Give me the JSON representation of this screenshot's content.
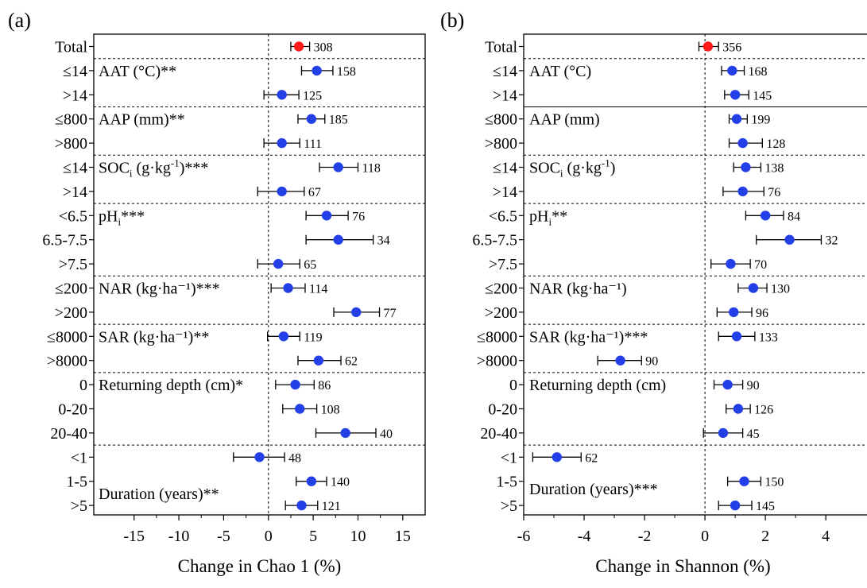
{
  "chart_data": [
    {
      "panel_label": "(a)",
      "type": "forest",
      "xlabel": "Change in Chao 1 (%)",
      "xlim": [
        -19.5,
        17.5
      ],
      "xticks": [
        -15,
        -10,
        -5,
        0,
        5,
        10,
        15
      ],
      "categories": [
        "Total",
        "≤14",
        ">14",
        "≤800",
        ">800",
        "≤14",
        ">14",
        "<6.5",
        "6.5-7.5",
        ">7.5",
        "≤200",
        ">200",
        "≤8000",
        ">8000",
        "0",
        "0-20",
        "20-40",
        "<1",
        "1-5",
        ">5"
      ],
      "values": [
        3.4,
        5.4,
        1.5,
        4.8,
        1.5,
        7.8,
        1.5,
        6.5,
        7.8,
        1.1,
        2.2,
        9.8,
        1.7,
        5.6,
        3.0,
        3.5,
        8.6,
        -1.0,
        4.8,
        3.7
      ],
      "ci_low": [
        2.5,
        3.7,
        -0.5,
        3.3,
        -0.5,
        5.7,
        -1.2,
        4.2,
        4.2,
        -1.2,
        0.3,
        7.3,
        -0.1,
        3.3,
        0.8,
        1.6,
        5.3,
        -3.9,
        3.1,
        1.9
      ],
      "ci_high": [
        4.6,
        7.2,
        3.4,
        6.3,
        3.5,
        10.0,
        4.0,
        8.9,
        11.7,
        3.5,
        4.1,
        12.4,
        3.5,
        8.1,
        5.1,
        5.4,
        12.0,
        1.8,
        6.5,
        5.5
      ],
      "n": [
        "308",
        "158",
        "125",
        "185",
        "111",
        "118",
        "67",
        "76",
        "34",
        "65",
        "114",
        "77",
        "119",
        "62",
        "86",
        "108",
        "40",
        "48",
        "140",
        "121"
      ],
      "highlight_first": true,
      "group_labels": [
        "AAT (°C)**",
        "AAP (mm)**",
        "SOC",
        "pH",
        "NAR (kg·ha⁻¹)***",
        "SAR (kg·ha⁻¹)**",
        "Returning depth (cm)*",
        "Duration (years)**"
      ],
      "soc_label": {
        "base": "SOC",
        "sub": "i",
        "unit_pre": " (g·kg",
        "sup": "-1",
        "unit_post": ")",
        "stars": "***"
      },
      "ph_label": {
        "base": "pH",
        "sub": "i",
        "stars": "***"
      },
      "separator_after": [
        0,
        2,
        4,
        6,
        9,
        11,
        13,
        16
      ],
      "solid_separators": []
    },
    {
      "panel_label": "(b)",
      "type": "forest",
      "xlabel": "Change in Shannon (%)",
      "xlim": [
        -6,
        5.6
      ],
      "xticks": [
        -6,
        -4,
        -2,
        0,
        2,
        4
      ],
      "categories": [
        "Total",
        "≤14",
        ">14",
        "≤800",
        ">800",
        "≤14",
        ">14",
        "<6.5",
        "6.5-7.5",
        ">7.5",
        "≤200",
        ">200",
        "≤8000",
        ">8000",
        "0",
        "0-20",
        "20-40",
        "<1",
        "1-5",
        ">5"
      ],
      "values": [
        0.1,
        0.9,
        1.0,
        1.05,
        1.25,
        1.35,
        1.25,
        2.0,
        2.8,
        0.85,
        1.6,
        0.95,
        1.05,
        -2.8,
        0.75,
        1.1,
        0.6,
        -4.9,
        1.3,
        1.0
      ],
      "ci_low": [
        -0.2,
        0.55,
        0.65,
        0.8,
        0.8,
        0.95,
        0.6,
        1.35,
        1.7,
        0.2,
        1.1,
        0.4,
        0.45,
        -3.55,
        0.3,
        0.7,
        -0.05,
        -5.7,
        0.75,
        0.45
      ],
      "ci_high": [
        0.45,
        1.3,
        1.45,
        1.4,
        1.9,
        1.85,
        1.95,
        2.6,
        3.85,
        1.5,
        2.05,
        1.55,
        1.65,
        -2.1,
        1.25,
        1.5,
        1.25,
        -4.1,
        1.85,
        1.55
      ],
      "n": [
        "356",
        "168",
        "145",
        "199",
        "128",
        "138",
        "76",
        "84",
        "32",
        "70",
        "130",
        "96",
        "133",
        "90",
        "90",
        "126",
        "45",
        "62",
        "150",
        "145"
      ],
      "highlight_first": true,
      "group_labels": [
        "AAT (°C)",
        "AAP (mm)",
        "SOC",
        "pH",
        "NAR (kg·ha⁻¹)",
        "SAR (kg·ha⁻¹)***",
        "Returning depth (cm)",
        "Duration (years)***"
      ],
      "soc_label": {
        "base": "SOC",
        "sub": "i",
        "unit_pre": " (g·kg",
        "sup": "-1",
        "unit_post": ")",
        "stars": ""
      },
      "ph_label": {
        "base": "pH",
        "sub": "i",
        "stars": "**"
      },
      "separator_after": [
        0,
        4,
        6,
        9,
        11,
        13,
        16
      ],
      "solid_separators": [
        2
      ]
    }
  ],
  "colors": {
    "highlight": "#ff1a1a",
    "point": "#2340e8",
    "axis": "#000000"
  }
}
